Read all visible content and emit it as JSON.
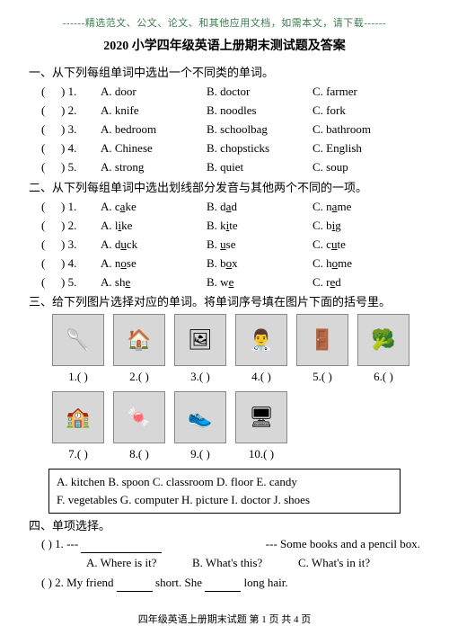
{
  "topnote": "------精选范文、公文、论文、和其他应用文档，如需本文，请下载------",
  "title": "2020 小学四年级英语上册期末测试题及答案",
  "section1": {
    "heading": "一、从下列每组单词中选出一个不同类的单词。",
    "items": [
      {
        "n": "1",
        "a": "A. door",
        "b": "B. doctor",
        "c": "C. farmer"
      },
      {
        "n": "2",
        "a": "A. knife",
        "b": "B. noodles",
        "c": "C. fork"
      },
      {
        "n": "3",
        "a": "A. bedroom",
        "b": "B. schoolbag",
        "c": "C. bathroom"
      },
      {
        "n": "4",
        "a": "A. Chinese",
        "b": "B. chopsticks",
        "c": "C. English"
      },
      {
        "n": "5",
        "a": "A. strong",
        "b": "B. quiet",
        "c": "C. soup"
      }
    ]
  },
  "section2": {
    "heading": "二、从下列每组单词中选出划线部分发音与其他两个不同的一项。",
    "items": [
      {
        "n": "1",
        "ap": "A. c",
        "au": "a",
        "as": "ke",
        "bp": "B. d",
        "bu": "a",
        "bs": "d",
        "cp": "C. n",
        "cu": "a",
        "cs": "me"
      },
      {
        "n": "2",
        "ap": "A. l",
        "au": "i",
        "as": "ke",
        "bp": "B. k",
        "bu": "i",
        "bs": "te",
        "cp": "C. b",
        "cu": "i",
        "cs": "g"
      },
      {
        "n": "3",
        "ap": "A. d",
        "au": "u",
        "as": "ck",
        "bp": "B. ",
        "bu": "u",
        "bs": "se",
        "cp": "C. c",
        "cu": "u",
        "cs": "te"
      },
      {
        "n": "4",
        "ap": "A. n",
        "au": "o",
        "as": "se",
        "bp": "B. b",
        "bu": "o",
        "bs": "x",
        "cp": "C. h",
        "cu": "o",
        "cs": "me"
      },
      {
        "n": "5",
        "ap": "A. sh",
        "au": "e",
        "as": "",
        "bp": "B. w",
        "bu": "e",
        "bs": "",
        "cp": "C. r",
        "cu": "e",
        "cs": "d"
      }
    ]
  },
  "section3": {
    "heading": "三、给下列图片选择对应的单词。将单词序号填在图片下面的括号里。",
    "imgs": [
      {
        "n": "1",
        "g": "🥄"
      },
      {
        "n": "2",
        "g": "🏠"
      },
      {
        "n": "3",
        "g": "🖼"
      },
      {
        "n": "4",
        "g": "👨‍⚕️"
      },
      {
        "n": "5",
        "g": "🚪"
      },
      {
        "n": "6",
        "g": "🥦"
      },
      {
        "n": "7",
        "g": "🏫"
      },
      {
        "n": "8",
        "g": "🍬"
      },
      {
        "n": "9",
        "g": "👟"
      },
      {
        "n": "10",
        "g": "🖥"
      }
    ],
    "bank1": "A. kitchen     B. spoon    C. classroom     D. floor       E. candy",
    "bank2": "F. vegetables  G. computer    H. picture    I. doctor    J. shoes"
  },
  "section4": {
    "heading": "四、单项选择。",
    "q1": {
      "label": "(      ) 1. ---",
      "tail": "--- Some books and a pencil box.",
      "a": "A. Where is it?",
      "b": "B. What's this?",
      "c": "C. What's in it?"
    },
    "q2": {
      "label": "(      ) 2. My friend",
      "mid": "short. She",
      "tail": "long hair."
    }
  },
  "footer": "四年级英语上册期末试题   第 1 页  共 4 页"
}
